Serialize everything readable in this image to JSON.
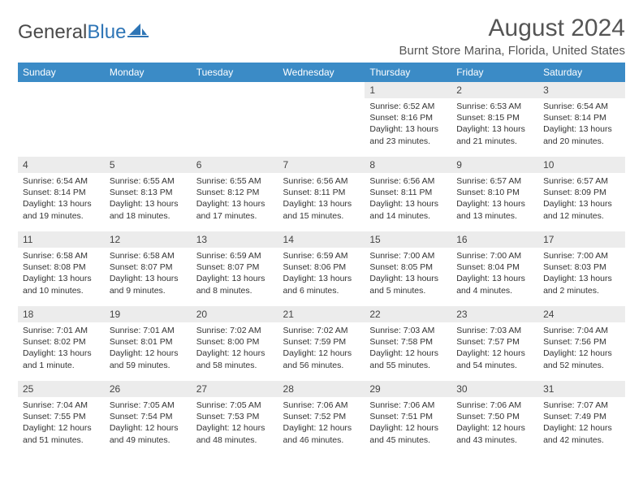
{
  "logo": {
    "part1": "General",
    "part2": "Blue"
  },
  "title": "August 2024",
  "location": "Burnt Store Marina, Florida, United States",
  "colors": {
    "header_bg": "#3b8bc6",
    "header_fg": "#ffffff",
    "daynum_bg": "#ececec",
    "logo_blue": "#2e75b6"
  },
  "weekdays": [
    "Sunday",
    "Monday",
    "Tuesday",
    "Wednesday",
    "Thursday",
    "Friday",
    "Saturday"
  ],
  "weeks": [
    [
      null,
      null,
      null,
      null,
      {
        "n": "1",
        "sr": "6:52 AM",
        "ss": "8:16 PM",
        "dl": "13 hours and 23 minutes."
      },
      {
        "n": "2",
        "sr": "6:53 AM",
        "ss": "8:15 PM",
        "dl": "13 hours and 21 minutes."
      },
      {
        "n": "3",
        "sr": "6:54 AM",
        "ss": "8:14 PM",
        "dl": "13 hours and 20 minutes."
      }
    ],
    [
      {
        "n": "4",
        "sr": "6:54 AM",
        "ss": "8:14 PM",
        "dl": "13 hours and 19 minutes."
      },
      {
        "n": "5",
        "sr": "6:55 AM",
        "ss": "8:13 PM",
        "dl": "13 hours and 18 minutes."
      },
      {
        "n": "6",
        "sr": "6:55 AM",
        "ss": "8:12 PM",
        "dl": "13 hours and 17 minutes."
      },
      {
        "n": "7",
        "sr": "6:56 AM",
        "ss": "8:11 PM",
        "dl": "13 hours and 15 minutes."
      },
      {
        "n": "8",
        "sr": "6:56 AM",
        "ss": "8:11 PM",
        "dl": "13 hours and 14 minutes."
      },
      {
        "n": "9",
        "sr": "6:57 AM",
        "ss": "8:10 PM",
        "dl": "13 hours and 13 minutes."
      },
      {
        "n": "10",
        "sr": "6:57 AM",
        "ss": "8:09 PM",
        "dl": "13 hours and 12 minutes."
      }
    ],
    [
      {
        "n": "11",
        "sr": "6:58 AM",
        "ss": "8:08 PM",
        "dl": "13 hours and 10 minutes."
      },
      {
        "n": "12",
        "sr": "6:58 AM",
        "ss": "8:07 PM",
        "dl": "13 hours and 9 minutes."
      },
      {
        "n": "13",
        "sr": "6:59 AM",
        "ss": "8:07 PM",
        "dl": "13 hours and 8 minutes."
      },
      {
        "n": "14",
        "sr": "6:59 AM",
        "ss": "8:06 PM",
        "dl": "13 hours and 6 minutes."
      },
      {
        "n": "15",
        "sr": "7:00 AM",
        "ss": "8:05 PM",
        "dl": "13 hours and 5 minutes."
      },
      {
        "n": "16",
        "sr": "7:00 AM",
        "ss": "8:04 PM",
        "dl": "13 hours and 4 minutes."
      },
      {
        "n": "17",
        "sr": "7:00 AM",
        "ss": "8:03 PM",
        "dl": "13 hours and 2 minutes."
      }
    ],
    [
      {
        "n": "18",
        "sr": "7:01 AM",
        "ss": "8:02 PM",
        "dl": "13 hours and 1 minute."
      },
      {
        "n": "19",
        "sr": "7:01 AM",
        "ss": "8:01 PM",
        "dl": "12 hours and 59 minutes."
      },
      {
        "n": "20",
        "sr": "7:02 AM",
        "ss": "8:00 PM",
        "dl": "12 hours and 58 minutes."
      },
      {
        "n": "21",
        "sr": "7:02 AM",
        "ss": "7:59 PM",
        "dl": "12 hours and 56 minutes."
      },
      {
        "n": "22",
        "sr": "7:03 AM",
        "ss": "7:58 PM",
        "dl": "12 hours and 55 minutes."
      },
      {
        "n": "23",
        "sr": "7:03 AM",
        "ss": "7:57 PM",
        "dl": "12 hours and 54 minutes."
      },
      {
        "n": "24",
        "sr": "7:04 AM",
        "ss": "7:56 PM",
        "dl": "12 hours and 52 minutes."
      }
    ],
    [
      {
        "n": "25",
        "sr": "7:04 AM",
        "ss": "7:55 PM",
        "dl": "12 hours and 51 minutes."
      },
      {
        "n": "26",
        "sr": "7:05 AM",
        "ss": "7:54 PM",
        "dl": "12 hours and 49 minutes."
      },
      {
        "n": "27",
        "sr": "7:05 AM",
        "ss": "7:53 PM",
        "dl": "12 hours and 48 minutes."
      },
      {
        "n": "28",
        "sr": "7:06 AM",
        "ss": "7:52 PM",
        "dl": "12 hours and 46 minutes."
      },
      {
        "n": "29",
        "sr": "7:06 AM",
        "ss": "7:51 PM",
        "dl": "12 hours and 45 minutes."
      },
      {
        "n": "30",
        "sr": "7:06 AM",
        "ss": "7:50 PM",
        "dl": "12 hours and 43 minutes."
      },
      {
        "n": "31",
        "sr": "7:07 AM",
        "ss": "7:49 PM",
        "dl": "12 hours and 42 minutes."
      }
    ]
  ],
  "labels": {
    "sunrise": "Sunrise: ",
    "sunset": "Sunset: ",
    "daylight": "Daylight: "
  }
}
